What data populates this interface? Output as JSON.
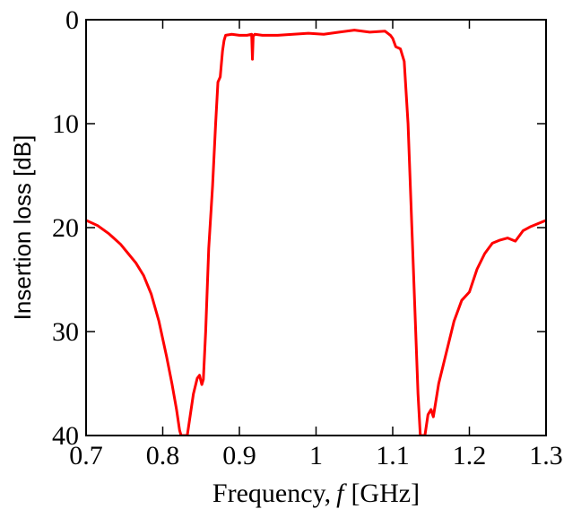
{
  "chart_data": {
    "type": "line",
    "title": "",
    "xlabel_prefix": "Frequency,",
    "xlabel_var": "f",
    "xlabel_suffix": "[GHz]",
    "ylabel": "Insertion loss [dB]",
    "xlim": [
      0.7,
      1.3
    ],
    "ylim": [
      0,
      40
    ],
    "y_inverted": true,
    "grid": false,
    "x_ticks": [
      0.7,
      0.8,
      0.9,
      1.0,
      1.1,
      1.2,
      1.3
    ],
    "x_tick_labels": [
      "0.7",
      "0.8",
      "0.9",
      "1",
      "1.1",
      "1.2",
      "1.3"
    ],
    "y_ticks": [
      0,
      10,
      20,
      30,
      40
    ],
    "y_tick_labels": [
      "0",
      "10",
      "20",
      "30",
      "40"
    ],
    "series": [
      {
        "color": "#ff0000",
        "x": [
          0.7,
          0.715,
          0.73,
          0.745,
          0.755,
          0.765,
          0.775,
          0.785,
          0.795,
          0.805,
          0.812,
          0.818,
          0.822,
          0.824,
          0.826,
          0.83,
          0.832,
          0.835,
          0.84,
          0.845,
          0.848,
          0.851,
          0.853,
          0.856,
          0.86,
          0.865,
          0.869,
          0.872,
          0.875,
          0.878,
          0.88,
          0.882,
          0.89,
          0.9,
          0.91,
          0.916,
          0.917,
          0.918,
          0.92,
          0.93,
          0.95,
          0.97,
          0.99,
          1.01,
          1.03,
          1.05,
          1.07,
          1.09,
          1.097,
          1.1,
          1.104,
          1.11,
          1.115,
          1.12,
          1.125,
          1.13,
          1.133,
          1.136,
          1.138,
          1.14,
          1.142,
          1.144,
          1.146,
          1.15,
          1.153,
          1.16,
          1.17,
          1.18,
          1.19,
          1.2,
          1.21,
          1.22,
          1.23,
          1.24,
          1.25,
          1.26,
          1.27,
          1.28,
          1.29,
          1.3
        ],
        "y": [
          19.3,
          19.8,
          20.6,
          21.6,
          22.5,
          23.4,
          24.6,
          26.4,
          29.0,
          32.4,
          35.0,
          37.5,
          39.5,
          40.0,
          40.0,
          40.0,
          40.0,
          38.5,
          36.0,
          34.5,
          34.2,
          35.1,
          34.6,
          30.0,
          22.0,
          16.0,
          10.0,
          6.0,
          5.5,
          3.0,
          2.0,
          1.5,
          1.4,
          1.5,
          1.5,
          1.4,
          3.8,
          1.6,
          1.4,
          1.5,
          1.5,
          1.4,
          1.3,
          1.4,
          1.2,
          1.0,
          1.2,
          1.1,
          1.5,
          1.8,
          2.6,
          2.8,
          4.0,
          10.0,
          20.0,
          30.0,
          36.0,
          40.0,
          40.0,
          40.0,
          40.0,
          39.0,
          38.0,
          37.5,
          38.2,
          35.0,
          32.0,
          29.0,
          27.0,
          26.2,
          24.0,
          22.5,
          21.5,
          21.2,
          21.0,
          21.3,
          20.3,
          19.9,
          19.6,
          19.3
        ]
      }
    ]
  }
}
